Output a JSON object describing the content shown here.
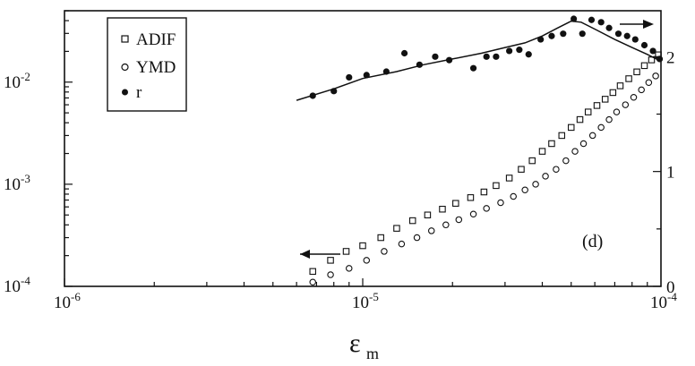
{
  "chart_data": {
    "type": "scatter",
    "x_scale": "log",
    "y_left_scale": "log",
    "xlim": [
      1e-06,
      0.0001
    ],
    "ylim_left": [
      0.0001,
      0.05
    ],
    "ylim_right": [
      0,
      2.4
    ],
    "x_ticks": [
      {
        "value": 1e-06,
        "base": "10",
        "exp": "-6"
      },
      {
        "value": 1e-05,
        "base": "10",
        "exp": "-5"
      },
      {
        "value": 0.0001,
        "base": "10",
        "exp": "-4"
      }
    ],
    "y_left_ticks": [
      {
        "value": 0.0001,
        "base": "10",
        "exp": "-4"
      },
      {
        "value": 0.001,
        "base": "10",
        "exp": "-3"
      },
      {
        "value": 0.01,
        "base": "10",
        "exp": "-2"
      }
    ],
    "y_right_ticks": [
      {
        "value": 0,
        "label": "0"
      },
      {
        "value": 1,
        "label": "1"
      },
      {
        "value": 2,
        "label": "2"
      }
    ],
    "xlabel": "ε",
    "xlabel_sub": "m",
    "panel_label": "(d)",
    "legend_position": "top-left",
    "series": [
      {
        "name": "ADIF",
        "marker": "open-square",
        "axis": "left",
        "x": [
          6.8e-06,
          7.8e-06,
          8.8e-06,
          1e-05,
          1.15e-05,
          1.3e-05,
          1.47e-05,
          1.65e-05,
          1.85e-05,
          2.05e-05,
          2.3e-05,
          2.55e-05,
          2.8e-05,
          3.1e-05,
          3.4e-05,
          3.7e-05,
          4e-05,
          4.3e-05,
          4.65e-05,
          5e-05,
          5.35e-05,
          5.7e-05,
          6.1e-05,
          6.5e-05,
          6.9e-05,
          7.3e-05,
          7.8e-05,
          8.3e-05,
          8.8e-05,
          9.3e-05,
          9.8e-05
        ],
        "y": [
          0.00014,
          0.00018,
          0.00022,
          0.00025,
          0.0003,
          0.00037,
          0.00044,
          0.0005,
          0.00057,
          0.00065,
          0.00074,
          0.00084,
          0.00097,
          0.00115,
          0.0014,
          0.0017,
          0.0021,
          0.0025,
          0.003,
          0.0036,
          0.0043,
          0.0051,
          0.0059,
          0.0068,
          0.0079,
          0.0092,
          0.0108,
          0.0126,
          0.0145,
          0.0165,
          0.0185
        ]
      },
      {
        "name": "YMD",
        "marker": "open-circle",
        "axis": "left",
        "x": [
          6.8e-06,
          7.8e-06,
          9e-06,
          1.03e-05,
          1.18e-05,
          1.35e-05,
          1.52e-05,
          1.7e-05,
          1.9e-05,
          2.1e-05,
          2.35e-05,
          2.6e-05,
          2.9e-05,
          3.2e-05,
          3.5e-05,
          3.8e-05,
          4.1e-05,
          4.45e-05,
          4.8e-05,
          5.15e-05,
          5.5e-05,
          5.9e-05,
          6.3e-05,
          6.7e-05,
          7.1e-05,
          7.6e-05,
          8.1e-05,
          8.6e-05,
          9.1e-05,
          9.6e-05
        ],
        "y": [
          0.00011,
          0.00013,
          0.00015,
          0.00018,
          0.00022,
          0.00026,
          0.0003,
          0.00035,
          0.0004,
          0.00045,
          0.00051,
          0.00058,
          0.00066,
          0.00076,
          0.00088,
          0.001,
          0.0012,
          0.0014,
          0.0017,
          0.0021,
          0.0025,
          0.003,
          0.0036,
          0.0043,
          0.0051,
          0.006,
          0.0071,
          0.0084,
          0.0099,
          0.0115
        ]
      },
      {
        "name": "r",
        "marker": "filled-circle",
        "axis": "right",
        "x": [
          6.8e-06,
          8e-06,
          9e-06,
          1.03e-05,
          1.2e-05,
          1.38e-05,
          1.55e-05,
          1.75e-05,
          1.95e-05,
          2.35e-05,
          2.6e-05,
          2.8e-05,
          3.1e-05,
          3.35e-05,
          3.6e-05,
          3.95e-05,
          4.3e-05,
          4.7e-05,
          5.1e-05,
          5.45e-05,
          5.85e-05,
          6.3e-05,
          6.7e-05,
          7.2e-05,
          7.7e-05,
          8.2e-05,
          8.8e-05,
          9.4e-05,
          9.9e-05
        ],
        "y": [
          1.66,
          1.7,
          1.82,
          1.84,
          1.87,
          2.03,
          1.93,
          2.0,
          1.97,
          1.9,
          2.0,
          2.0,
          2.05,
          2.06,
          2.02,
          2.15,
          2.18,
          2.2,
          2.33,
          2.2,
          2.32,
          2.3,
          2.25,
          2.2,
          2.18,
          2.15,
          2.1,
          2.05,
          1.98
        ]
      },
      {
        "name": "r_fit",
        "style": "solid-line",
        "axis": "right",
        "x": [
          6e-06,
          8e-06,
          1e-05,
          1.3e-05,
          1.6e-05,
          2e-05,
          2.5e-05,
          3e-05,
          3.5e-05,
          4e-05,
          4.5e-05,
          5e-05,
          5.4e-05,
          6e-05,
          7e-05,
          8e-05,
          9e-05,
          0.0001
        ],
        "y": [
          1.62,
          1.72,
          1.81,
          1.87,
          1.93,
          1.98,
          2.03,
          2.08,
          2.12,
          2.18,
          2.25,
          2.31,
          2.3,
          2.24,
          2.15,
          2.08,
          2.02,
          1.96
        ]
      }
    ],
    "annotations": [
      {
        "type": "arrow",
        "direction": "left",
        "meaning": "ADIF/YMD use left axis"
      },
      {
        "type": "arrow",
        "direction": "right",
        "meaning": "r uses right axis"
      }
    ]
  }
}
